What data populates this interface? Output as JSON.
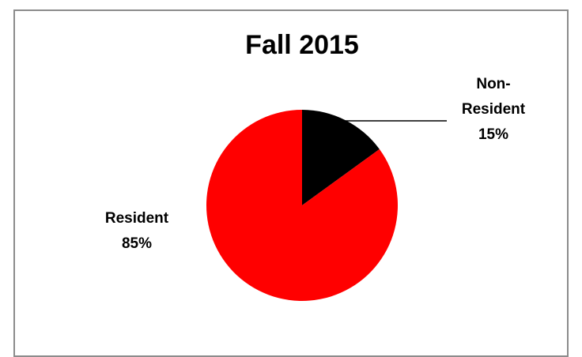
{
  "chart_data": {
    "type": "pie",
    "title": "Fall 2015",
    "categories": [
      "Non-Resident",
      "Resident"
    ],
    "values": [
      15,
      85
    ],
    "unit": "%",
    "colors": [
      "#000000",
      "#ff0000"
    ],
    "labels": [
      {
        "lines": [
          "Non-",
          "Resident",
          "15%"
        ]
      },
      {
        "lines": [
          "Resident",
          "85%"
        ]
      }
    ],
    "legend": "none"
  }
}
